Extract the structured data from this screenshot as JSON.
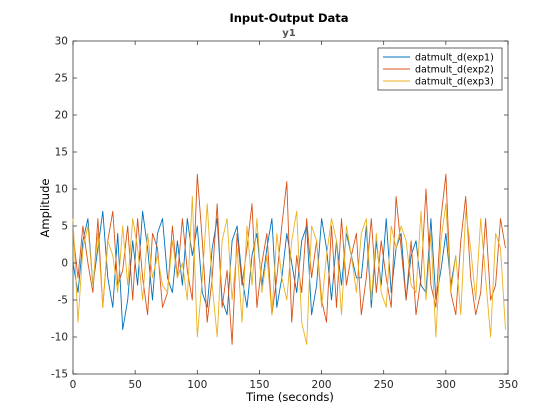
{
  "chart_data": {
    "type": "line",
    "title": "Input-Output Data",
    "subtitle": "y1",
    "xlabel": "Time (seconds)",
    "ylabel": "Amplitude",
    "xlim": [
      0,
      350
    ],
    "ylim": [
      -15,
      30
    ],
    "xticks": [
      0,
      50,
      100,
      150,
      200,
      250,
      300,
      350
    ],
    "yticks": [
      -15,
      -10,
      -5,
      0,
      5,
      10,
      15,
      20,
      25,
      30
    ],
    "grid": false,
    "legend_position": "top-right",
    "series": [
      {
        "name": "datmult_d(exp1)",
        "color": "#0072bd",
        "x": [
          0,
          4,
          8,
          12,
          16,
          20,
          24,
          28,
          32,
          36,
          40,
          44,
          48,
          52,
          56,
          60,
          64,
          68,
          72,
          76,
          80,
          84,
          88,
          92,
          96,
          100,
          104,
          108,
          112,
          116,
          120,
          124,
          128,
          132,
          136,
          140,
          144,
          148,
          152,
          156,
          160,
          164,
          168,
          172,
          176,
          180,
          184,
          188,
          192,
          196,
          200,
          204,
          208,
          212,
          216,
          220,
          224,
          228,
          232,
          236,
          240,
          244,
          248,
          252,
          256,
          260,
          264,
          268,
          272,
          276,
          280,
          284,
          288,
          292,
          296,
          300,
          304,
          308
        ],
        "values": [
          0,
          -4,
          3,
          6,
          -3,
          2,
          7,
          -2,
          -6,
          4,
          -9,
          -5,
          3,
          -3,
          7,
          2,
          -5,
          4,
          6,
          -2,
          -4,
          3,
          -3,
          6,
          1,
          5,
          -4,
          -6,
          2,
          6,
          -5,
          -7,
          3,
          5,
          -2,
          -6,
          1,
          4,
          -3,
          2,
          6,
          -6,
          -2,
          4,
          0,
          -4,
          3,
          5,
          -7,
          -3,
          6,
          2,
          -5,
          3,
          -3,
          4,
          1,
          -2,
          -2,
          5,
          -6,
          3,
          -3,
          6,
          -4,
          2,
          4,
          -5,
          1,
          3,
          -3,
          -4,
          6,
          -5,
          -1,
          4,
          -3,
          1
        ]
      },
      {
        "name": "datmult_d(exp2)",
        "color": "#d95319",
        "x": [
          0,
          4,
          8,
          12,
          16,
          20,
          24,
          28,
          32,
          36,
          40,
          44,
          48,
          52,
          56,
          60,
          64,
          68,
          72,
          76,
          80,
          84,
          88,
          92,
          96,
          100,
          104,
          108,
          112,
          116,
          120,
          124,
          128,
          132,
          136,
          140,
          144,
          148,
          152,
          156,
          160,
          164,
          168,
          172,
          176,
          180,
          184,
          188,
          192,
          196,
          200,
          204,
          208,
          212,
          216,
          220,
          224,
          228,
          232,
          236,
          240,
          244,
          248,
          252,
          256,
          260,
          264,
          268,
          272,
          276,
          280,
          284,
          288,
          292,
          296,
          300,
          304,
          308,
          312,
          316,
          320,
          324,
          328,
          332,
          336,
          340,
          344,
          348
        ],
        "values": [
          4,
          -2,
          5,
          0,
          -4,
          6,
          -6,
          3,
          7,
          -3,
          -1,
          5,
          -5,
          6,
          -2,
          -7,
          4,
          2,
          -6,
          -4,
          5,
          -2,
          6,
          -1,
          -5,
          12,
          3,
          -8,
          -2,
          8,
          -6,
          -1,
          -11,
          4,
          -3,
          2,
          8,
          -6,
          0,
          4,
          -7,
          -2,
          5,
          11,
          -8,
          1,
          -4,
          6,
          -2,
          3,
          -5,
          -8,
          5,
          -6,
          6,
          -3,
          1,
          4,
          -7,
          -2,
          6,
          -4,
          3,
          -2,
          -6,
          9,
          2,
          -5,
          3,
          -7,
          -2,
          10,
          -3,
          -6,
          6,
          12,
          -4,
          -7,
          3,
          9,
          -2,
          -7,
          -4,
          6,
          -5,
          -3,
          6,
          2
        ]
      },
      {
        "name": "datmult_d(exp3)",
        "color": "#edb120",
        "x": [
          0,
          4,
          8,
          12,
          16,
          20,
          24,
          28,
          32,
          36,
          40,
          44,
          48,
          52,
          56,
          60,
          64,
          68,
          72,
          76,
          80,
          84,
          88,
          92,
          96,
          100,
          104,
          108,
          112,
          116,
          120,
          124,
          128,
          132,
          136,
          140,
          144,
          148,
          152,
          156,
          160,
          164,
          168,
          172,
          176,
          180,
          184,
          188,
          192,
          196,
          200,
          204,
          208,
          212,
          216,
          220,
          224,
          228,
          232,
          236,
          240,
          244,
          248,
          252,
          256,
          260,
          264,
          268,
          272,
          276,
          280,
          284,
          288,
          292,
          296,
          300,
          304,
          308,
          312,
          316,
          320,
          324,
          328,
          332,
          336,
          340,
          344,
          348
        ],
        "values": [
          6,
          -8,
          2,
          5,
          -3,
          4,
          -6,
          3,
          1,
          -4,
          5,
          -3,
          6,
          2,
          -5,
          4,
          -2,
          1,
          -3,
          -4,
          3,
          -2,
          0,
          -5,
          9,
          -10,
          -2,
          8,
          -3,
          -10,
          3,
          6,
          -5,
          2,
          -8,
          5,
          -3,
          6,
          -4,
          1,
          -7,
          4,
          -2,
          -5,
          3,
          7,
          -8,
          -11,
          5,
          3,
          -6,
          1,
          6,
          3,
          -7,
          5,
          1,
          -4,
          4,
          6,
          -5,
          4,
          -4,
          -6,
          5,
          2,
          5,
          3,
          -3,
          -4,
          7,
          -5,
          4,
          -10,
          3,
          8,
          -4,
          1,
          -7,
          7,
          2,
          -5,
          6,
          -2,
          -10,
          4,
          2,
          -9
        ]
      }
    ]
  }
}
